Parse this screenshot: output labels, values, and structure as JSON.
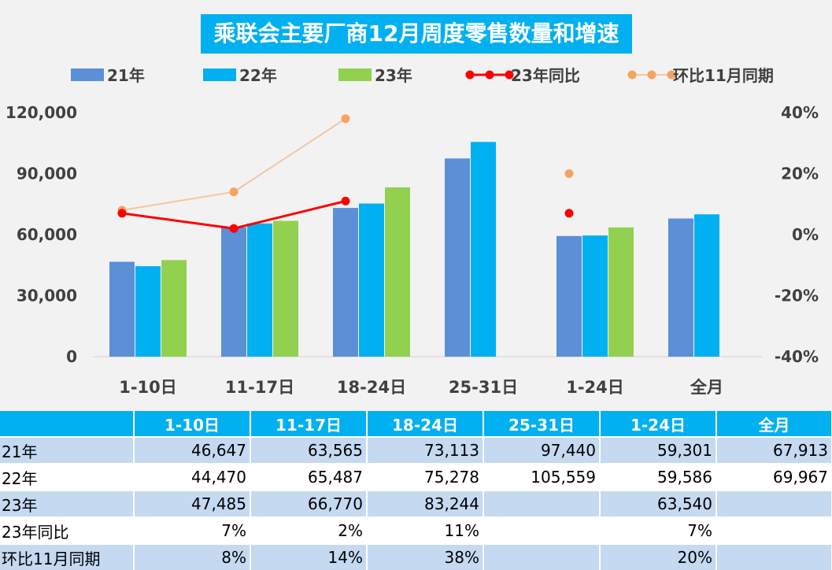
{
  "title": "乘联会主要厂商12月周度零售数量和增速",
  "colors": {
    "s21": "#5b8fd6",
    "s22": "#00b0f0",
    "s23": "#92d050",
    "yoy": "#ff0000",
    "mom": "#f4a460"
  },
  "chart_data": {
    "type": "bar",
    "title": "乘联会主要厂商12月周度零售数量和增速",
    "categories": [
      "1-10日",
      "11-17日",
      "18-24日",
      "25-31日",
      "1-24日",
      "全月"
    ],
    "series": [
      {
        "name": "21年",
        "values": [
          46647,
          63565,
          73113,
          97440,
          59301,
          67913
        ]
      },
      {
        "name": "22年",
        "values": [
          44470,
          65487,
          75278,
          105559,
          59586,
          69967
        ]
      },
      {
        "name": "23年",
        "values": [
          47485,
          66770,
          83244,
          null,
          63540,
          null
        ]
      }
    ],
    "line_series": [
      {
        "name": "23年同比",
        "axis": "right",
        "values": [
          7,
          2,
          11,
          null,
          7,
          null
        ]
      },
      {
        "name": "环比11月同期",
        "axis": "right",
        "values": [
          8,
          14,
          38,
          null,
          20,
          null
        ]
      }
    ],
    "ylim": [
      0,
      120000
    ],
    "yticks": [
      "120,000",
      "90,000",
      "60,000",
      "30,000",
      "0"
    ],
    "ytick_values": [
      120000,
      90000,
      60000,
      30000,
      0
    ],
    "y2lim": [
      -40,
      40
    ],
    "y2ticks": [
      "40%",
      "20%",
      "0%",
      "-20%",
      "-40%"
    ],
    "y2tick_values": [
      40,
      20,
      0,
      -20,
      -40
    ],
    "legend_position": "top",
    "grid": false
  },
  "table": {
    "headers": [
      "1-10日",
      "11-17日",
      "18-24日",
      "25-31日",
      "1-24日",
      "全月"
    ],
    "rows": [
      {
        "label": "21年",
        "cells": [
          "46,647",
          "63,565",
          "73,113",
          "97,440",
          "59,301",
          "67,913"
        ]
      },
      {
        "label": "22年",
        "cells": [
          "44,470",
          "65,487",
          "75,278",
          "105,559",
          "59,586",
          "69,967"
        ]
      },
      {
        "label": "23年",
        "cells": [
          "47,485",
          "66,770",
          "83,244",
          "",
          "63,540",
          ""
        ]
      },
      {
        "label": "23年同比",
        "cells": [
          "7%",
          "2%",
          "11%",
          "",
          "7%",
          ""
        ]
      },
      {
        "label": "环比11月同期",
        "cells": [
          "8%",
          "14%",
          "38%",
          "",
          "20%",
          ""
        ]
      }
    ]
  }
}
